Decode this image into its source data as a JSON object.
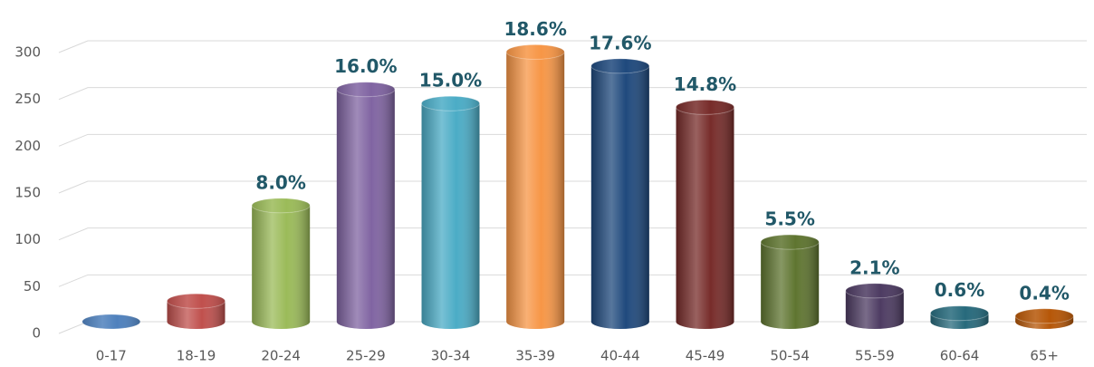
{
  "chart_data": {
    "type": "bar3d",
    "categories": [
      "0-17",
      "18-19",
      "20-24",
      "25-29",
      "30-34",
      "35-39",
      "40-44",
      "45-49",
      "50-54",
      "55-59",
      "60-64",
      "65+"
    ],
    "values": [
      0,
      22,
      124,
      248,
      233,
      288,
      273,
      229,
      85,
      33,
      9,
      6
    ],
    "percentages": [
      null,
      null,
      8.0,
      16.0,
      15.0,
      18.6,
      17.6,
      14.8,
      5.5,
      2.1,
      0.6,
      0.4
    ],
    "percentage_labels": [
      null,
      null,
      "8.0%",
      "16.0%",
      "15.0%",
      "18.6%",
      "17.6%",
      "14.8%",
      "5.5%",
      "2.1%",
      "0.6%",
      "0.4%"
    ],
    "colors": [
      "#4f81bd",
      "#c0504d",
      "#9bbb59",
      "#8064a2",
      "#4bacc6",
      "#f79646",
      "#1f497d",
      "#772c2a",
      "#5f7530",
      "#4d3b62",
      "#276a7c",
      "#b65708"
    ],
    "ylim": [
      0,
      300
    ],
    "yticks": [
      0,
      50,
      100,
      150,
      200,
      250,
      300
    ],
    "grid": true
  }
}
